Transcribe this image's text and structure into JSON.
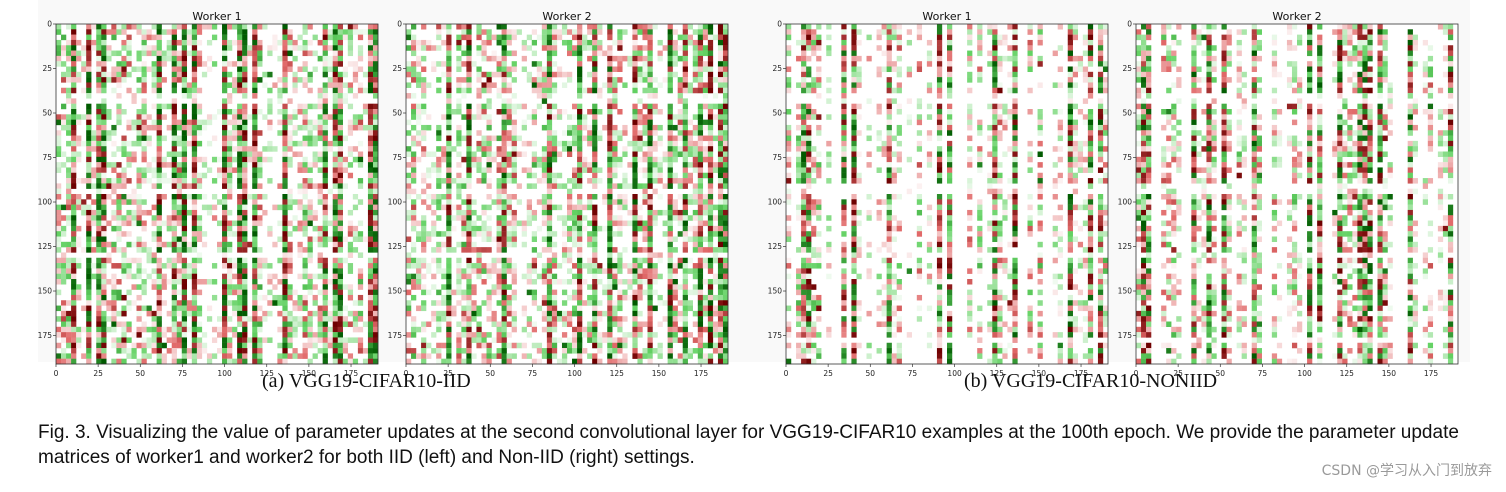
{
  "figure": {
    "panels": [
      {
        "title": "Worker 1",
        "variant": "iid",
        "seed": 11
      },
      {
        "title": "Worker 2",
        "variant": "iid",
        "seed": 23
      },
      {
        "title": "Worker 1",
        "variant": "noniid",
        "seed": 37
      },
      {
        "title": "Worker 2",
        "variant": "noniid",
        "seed": 53
      }
    ],
    "subcaptions": {
      "a": "(a)  VGG19-CIFAR10-IID",
      "b": "(b)  VGG19-CIFAR10-NONIID"
    },
    "caption": "Fig. 3. Visualizing the value of parameter updates at the second convolutional layer for VGG19-CIFAR10 examples at the 100th epoch. We provide the parameter update matrices of worker1 and worker2 for both IID (left) and Non-IID (right) settings.",
    "watermark": "CSDN @学习从入门到放弃"
  },
  "chart_data": [
    {
      "type": "heatmap",
      "title": "Worker 1",
      "x_ticks": [
        "0",
        "25",
        "50",
        "75",
        "100",
        "125",
        "150",
        "175"
      ],
      "y_ticks": [
        "0",
        "25",
        "50",
        "75",
        "100",
        "125",
        "150",
        "175"
      ],
      "xlim": [
        0,
        191
      ],
      "ylim": [
        191,
        0
      ],
      "colormap": "red-white-green"
    },
    {
      "type": "heatmap",
      "title": "Worker 2",
      "x_ticks": [
        "0",
        "25",
        "50",
        "75",
        "100",
        "125",
        "150",
        "175"
      ],
      "y_ticks": [
        "0",
        "25",
        "50",
        "75",
        "100",
        "125",
        "150",
        "175"
      ],
      "xlim": [
        0,
        191
      ],
      "ylim": [
        191,
        0
      ],
      "colormap": "red-white-green"
    },
    {
      "type": "heatmap",
      "title": "Worker 1",
      "x_ticks": [
        "0",
        "25",
        "50",
        "75",
        "100",
        "125",
        "150",
        "175"
      ],
      "y_ticks": [
        "0",
        "25",
        "50",
        "75",
        "100",
        "125",
        "150",
        "175"
      ],
      "xlim": [
        0,
        191
      ],
      "ylim": [
        191,
        0
      ],
      "colormap": "red-white-green"
    },
    {
      "type": "heatmap",
      "title": "Worker 2",
      "x_ticks": [
        "0",
        "25",
        "50",
        "75",
        "100",
        "125",
        "150",
        "175"
      ],
      "y_ticks": [
        "0",
        "25",
        "50",
        "75",
        "100",
        "125",
        "150",
        "175"
      ],
      "xlim": [
        0,
        191
      ],
      "ylim": [
        191,
        0
      ],
      "colormap": "red-white-green"
    }
  ]
}
